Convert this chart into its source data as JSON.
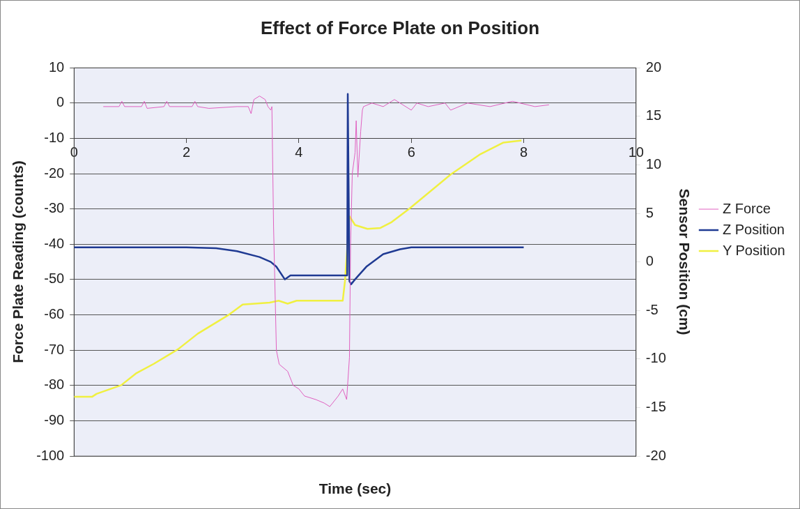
{
  "chart_data": {
    "type": "line",
    "title": "Effect of Force Plate on Position",
    "xlabel": "Time (sec)",
    "ylabel": "Force Plate Reading (counts)",
    "y2label": "Sensor Position (cm)",
    "xlim": [
      0,
      10
    ],
    "xticks": [
      0,
      2,
      4,
      6,
      8,
      10
    ],
    "ylim": [
      -100,
      10
    ],
    "yticks": [
      -100,
      -90,
      -80,
      -70,
      -60,
      -50,
      -40,
      -30,
      -20,
      -10,
      0,
      10
    ],
    "y2lim": [
      -20,
      20
    ],
    "y2ticks": [
      -20,
      -15,
      -10,
      -5,
      0,
      5,
      10,
      15,
      20
    ],
    "grid": "y",
    "legend": "right",
    "marker": "none",
    "line_style": "solid",
    "series": [
      {
        "name": "Z Force",
        "color": "#e060c0",
        "x": [
          0.52,
          0.8,
          0.85,
          0.9,
          1.2,
          1.25,
          1.3,
          1.6,
          1.65,
          1.7,
          2.1,
          2.15,
          2.2,
          2.4,
          2.9,
          3.1,
          3.15,
          3.2,
          3.3,
          3.4,
          3.45,
          3.5,
          3.52,
          3.55,
          3.6,
          3.65,
          3.8,
          3.9,
          4.0,
          4.1,
          4.3,
          4.45,
          4.55,
          4.7,
          4.78,
          4.85,
          4.9,
          4.92,
          4.95,
          5.0,
          5.02,
          5.05,
          5.1,
          5.13,
          5.15,
          5.3,
          5.5,
          5.7,
          5.9,
          6.0,
          6.1,
          6.3,
          6.6,
          6.7,
          7.0,
          7.4,
          7.8,
          8.2,
          8.45
        ],
        "values": [
          -1,
          -1,
          0.5,
          -1,
          -1,
          0.5,
          -1.5,
          -1,
          0.5,
          -1,
          -1,
          0.5,
          -1,
          -1.5,
          -1,
          -1,
          -3,
          1,
          2,
          1,
          -1,
          -2,
          -1,
          -35,
          -70,
          -74,
          -76,
          -80,
          -81,
          -83,
          -84,
          -85,
          -86,
          -83,
          -81,
          -84,
          -72,
          -40,
          -20,
          -14,
          -5,
          -21,
          -8,
          -2,
          -1,
          0,
          -1,
          1,
          -1,
          -2,
          0,
          -1,
          0,
          -2,
          0,
          -1,
          0.5,
          -1,
          -0.5
        ]
      },
      {
        "name": "Z Position",
        "color": "#1f3a93",
        "axis": "y2",
        "x": [
          0,
          1,
          2,
          2.53,
          2.9,
          3.3,
          3.5,
          3.6,
          3.75,
          3.85,
          4.5,
          4.86,
          4.87,
          4.9,
          4.93,
          5.0,
          5.2,
          5.5,
          5.8,
          6.0,
          7.0,
          8.0
        ],
        "values": [
          1.5,
          1.5,
          1.5,
          1.4,
          1.1,
          0.5,
          0,
          -0.5,
          -1.8,
          -1.4,
          -1.4,
          -1.4,
          17.3,
          -2,
          -2.3,
          -1.8,
          -0.5,
          0.8,
          1.3,
          1.5,
          1.5,
          1.5
        ]
      },
      {
        "name": "Y Position",
        "color": "#f0f040",
        "axis": "y2",
        "x": [
          0,
          0.32,
          0.4,
          0.84,
          1.1,
          1.42,
          1.85,
          2.2,
          2.74,
          3.0,
          3.48,
          3.64,
          3.8,
          3.96,
          4.78,
          4.82,
          4.9,
          5.0,
          5.22,
          5.45,
          5.65,
          5.97,
          6.7,
          7.23,
          7.64,
          7.96
        ],
        "values": [
          -13.9,
          -13.9,
          -13.6,
          -12.7,
          -11.5,
          -10.5,
          -9.0,
          -7.4,
          -5.5,
          -4.4,
          -4.2,
          -4.0,
          -4.3,
          -4.0,
          -4.0,
          -2,
          4.7,
          3.8,
          3.4,
          3.5,
          4.1,
          5.5,
          9.0,
          11.1,
          12.3,
          12.5
        ]
      }
    ]
  }
}
